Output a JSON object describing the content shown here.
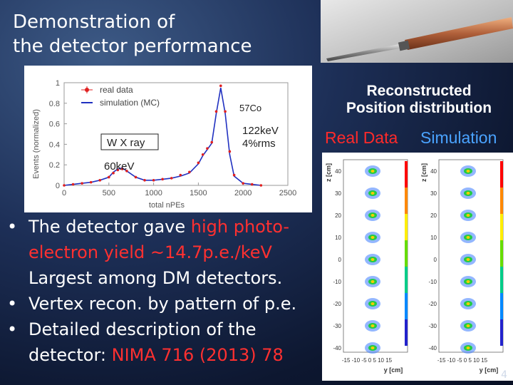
{
  "title": [
    "Demonstration of",
    "the detector performance"
  ],
  "spectrum": {
    "ylabel": "Events (normalized)",
    "xlabel": "total nPEs",
    "yticks": [
      "1",
      "0.8",
      "0.6",
      "0.4",
      "0.2",
      "0"
    ],
    "xticks": [
      "0",
      "500",
      "1000",
      "1500",
      "2000",
      "2500"
    ],
    "legend": [
      "real data",
      "simulation (MC)"
    ],
    "annot_co": "57Co",
    "annot_122": "122keV",
    "annot_rms": "4%rms",
    "annot_wx": "W X ray",
    "annot_60": "60keV",
    "colors": {
      "data": "#e02020",
      "sim": "#2030c0"
    }
  },
  "chart_data": {
    "type": "line",
    "xlabel": "total nPEs",
    "ylabel": "Events (normalized)",
    "xlim": [
      0,
      2500
    ],
    "ylim": [
      0,
      1
    ],
    "x": [
      0,
      100,
      200,
      300,
      400,
      500,
      550,
      600,
      650,
      700,
      800,
      900,
      1000,
      1100,
      1200,
      1300,
      1400,
      1500,
      1550,
      1600,
      1650,
      1700,
      1750,
      1800,
      1850,
      1900,
      2000,
      2100,
      2200
    ],
    "series": [
      {
        "name": "real data",
        "values": [
          0,
          0.01,
          0.02,
          0.03,
          0.05,
          0.08,
          0.12,
          0.15,
          0.16,
          0.14,
          0.08,
          0.05,
          0.05,
          0.06,
          0.07,
          0.1,
          0.13,
          0.22,
          0.3,
          0.36,
          0.42,
          0.72,
          0.97,
          0.72,
          0.33,
          0.1,
          0.02,
          0.01,
          0
        ]
      },
      {
        "name": "simulation (MC)",
        "values": [
          0,
          0.01,
          0.02,
          0.03,
          0.05,
          0.08,
          0.13,
          0.16,
          0.17,
          0.14,
          0.08,
          0.05,
          0.05,
          0.06,
          0.07,
          0.09,
          0.12,
          0.21,
          0.29,
          0.35,
          0.41,
          0.7,
          0.95,
          0.7,
          0.3,
          0.09,
          0.02,
          0.01,
          0
        ]
      }
    ]
  },
  "recon": {
    "title": [
      "Reconstructed",
      "Position distribution"
    ],
    "real_label": "Real Data",
    "sim_label": "Simulation",
    "zlabel": "z [cm]",
    "ylabel": "y [cm]",
    "zticks": [
      "40",
      "30",
      "20",
      "10",
      "0",
      "-10",
      "-20",
      "-30",
      "-40"
    ],
    "yticks": "-15 -10 -5 0 5 10 15"
  },
  "bullets": [
    {
      "a": "The detector gave ",
      "b": "high photo-electron yield ~14.7p.e./keV",
      "c": " Largest among DM detectors."
    },
    {
      "a": "Vertex recon. by pattern of p.e.",
      "b": "",
      "c": ""
    },
    {
      "a": "Detailed description of the detector: ",
      "b": "NIMA 716 (2013) 78",
      "c": ""
    }
  ],
  "page_number": "4"
}
